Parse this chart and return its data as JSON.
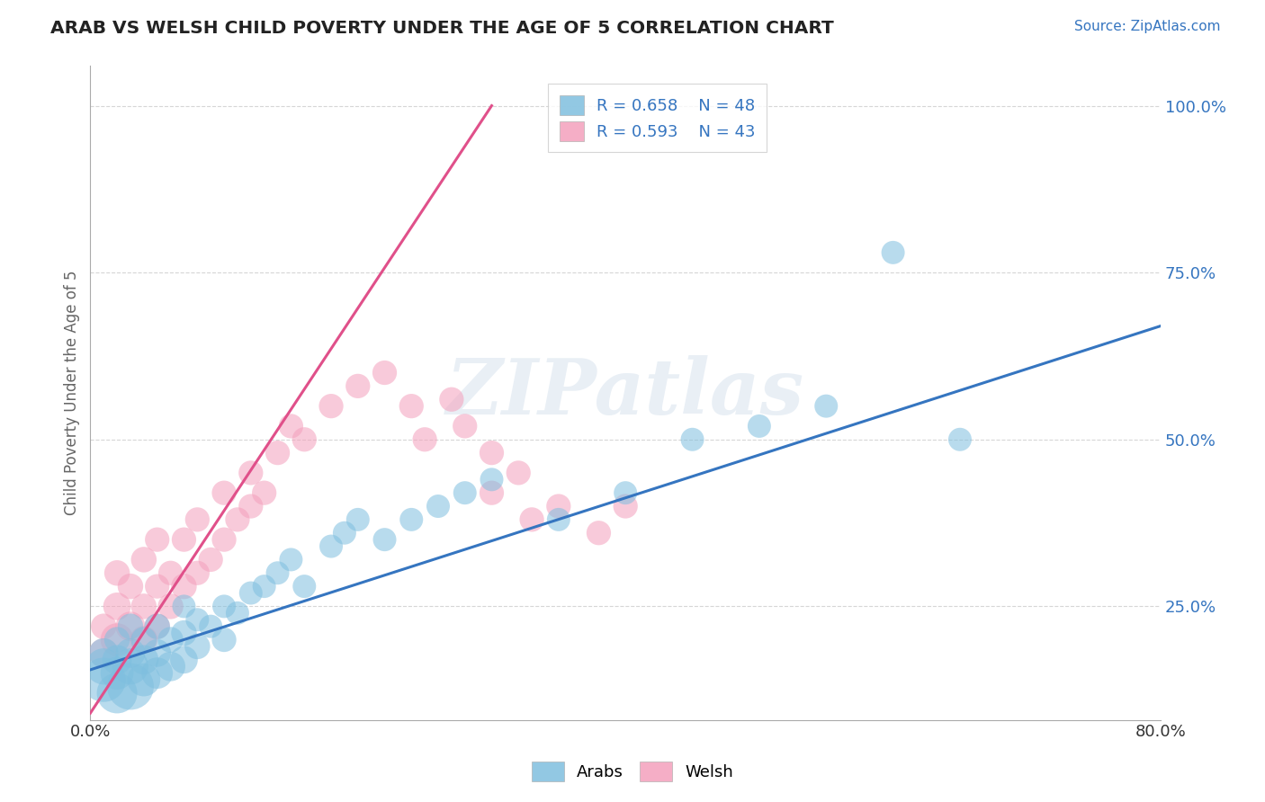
{
  "title": "ARAB VS WELSH CHILD POVERTY UNDER THE AGE OF 5 CORRELATION CHART",
  "source_text": "Source: ZipAtlas.com",
  "ylabel": "Child Poverty Under the Age of 5",
  "xlim": [
    0.0,
    0.8
  ],
  "ylim": [
    0.08,
    1.06
  ],
  "ytick_positions": [
    0.25,
    0.5,
    0.75,
    1.0
  ],
  "ytick_labels": [
    "25.0%",
    "50.0%",
    "75.0%",
    "100.0%"
  ],
  "arab_color": "#7fbfdf",
  "welsh_color": "#f4a0bc",
  "arab_line_color": "#3575c0",
  "welsh_line_color": "#e0508a",
  "arab_R": 0.658,
  "arab_N": 48,
  "welsh_R": 0.593,
  "welsh_N": 43,
  "legend_label_arab": "Arabs",
  "legend_label_welsh": "Welsh",
  "watermark": "ZIPatlas",
  "watermark_color": "#c8d8e8",
  "background_color": "#ffffff",
  "title_color": "#222222",
  "source_color": "#3575c0",
  "arab_scatter_x": [
    0.01,
    0.01,
    0.01,
    0.02,
    0.02,
    0.02,
    0.02,
    0.03,
    0.03,
    0.03,
    0.03,
    0.04,
    0.04,
    0.04,
    0.05,
    0.05,
    0.05,
    0.06,
    0.06,
    0.07,
    0.07,
    0.07,
    0.08,
    0.08,
    0.09,
    0.1,
    0.1,
    0.11,
    0.12,
    0.13,
    0.14,
    0.15,
    0.16,
    0.18,
    0.19,
    0.2,
    0.22,
    0.24,
    0.26,
    0.28,
    0.3,
    0.35,
    0.4,
    0.45,
    0.5,
    0.55,
    0.6,
    0.65
  ],
  "arab_scatter_y": [
    0.14,
    0.16,
    0.18,
    0.12,
    0.15,
    0.17,
    0.2,
    0.13,
    0.16,
    0.18,
    0.22,
    0.14,
    0.17,
    0.2,
    0.15,
    0.18,
    0.22,
    0.16,
    0.2,
    0.17,
    0.21,
    0.25,
    0.19,
    0.23,
    0.22,
    0.2,
    0.25,
    0.24,
    0.27,
    0.28,
    0.3,
    0.32,
    0.28,
    0.34,
    0.36,
    0.38,
    0.35,
    0.38,
    0.4,
    0.42,
    0.44,
    0.38,
    0.42,
    0.5,
    0.52,
    0.55,
    0.78,
    0.5
  ],
  "arab_scatter_sizes": [
    180,
    120,
    80,
    150,
    100,
    80,
    60,
    200,
    120,
    80,
    60,
    100,
    80,
    60,
    90,
    70,
    60,
    80,
    60,
    70,
    60,
    50,
    60,
    50,
    50,
    55,
    50,
    50,
    50,
    50,
    50,
    50,
    50,
    50,
    50,
    50,
    50,
    50,
    50,
    50,
    50,
    50,
    50,
    50,
    50,
    50,
    50,
    50
  ],
  "welsh_scatter_x": [
    0.01,
    0.01,
    0.02,
    0.02,
    0.02,
    0.03,
    0.03,
    0.04,
    0.04,
    0.04,
    0.05,
    0.05,
    0.05,
    0.06,
    0.06,
    0.07,
    0.07,
    0.08,
    0.08,
    0.09,
    0.1,
    0.1,
    0.11,
    0.12,
    0.12,
    0.13,
    0.14,
    0.15,
    0.16,
    0.18,
    0.2,
    0.22,
    0.24,
    0.25,
    0.27,
    0.28,
    0.3,
    0.3,
    0.32,
    0.33,
    0.35,
    0.38,
    0.4
  ],
  "welsh_scatter_y": [
    0.18,
    0.22,
    0.2,
    0.25,
    0.3,
    0.22,
    0.28,
    0.2,
    0.25,
    0.32,
    0.22,
    0.28,
    0.35,
    0.25,
    0.3,
    0.28,
    0.35,
    0.3,
    0.38,
    0.32,
    0.35,
    0.42,
    0.38,
    0.4,
    0.45,
    0.42,
    0.48,
    0.52,
    0.5,
    0.55,
    0.58,
    0.6,
    0.55,
    0.5,
    0.56,
    0.52,
    0.48,
    0.42,
    0.45,
    0.38,
    0.4,
    0.36,
    0.4
  ],
  "welsh_scatter_sizes": [
    80,
    60,
    100,
    70,
    60,
    80,
    60,
    70,
    60,
    60,
    60,
    55,
    55,
    60,
    55,
    60,
    55,
    55,
    55,
    55,
    55,
    55,
    55,
    55,
    55,
    55,
    55,
    55,
    55,
    55,
    55,
    55,
    55,
    55,
    55,
    55,
    55,
    55,
    55,
    55,
    55,
    55,
    55
  ],
  "welsh_line_x0": 0.0,
  "welsh_line_y0": 0.09,
  "welsh_line_x1": 0.3,
  "welsh_line_y1": 1.0,
  "arab_line_x0": 0.0,
  "arab_line_y0": 0.155,
  "arab_line_x1": 0.8,
  "arab_line_y1": 0.67
}
